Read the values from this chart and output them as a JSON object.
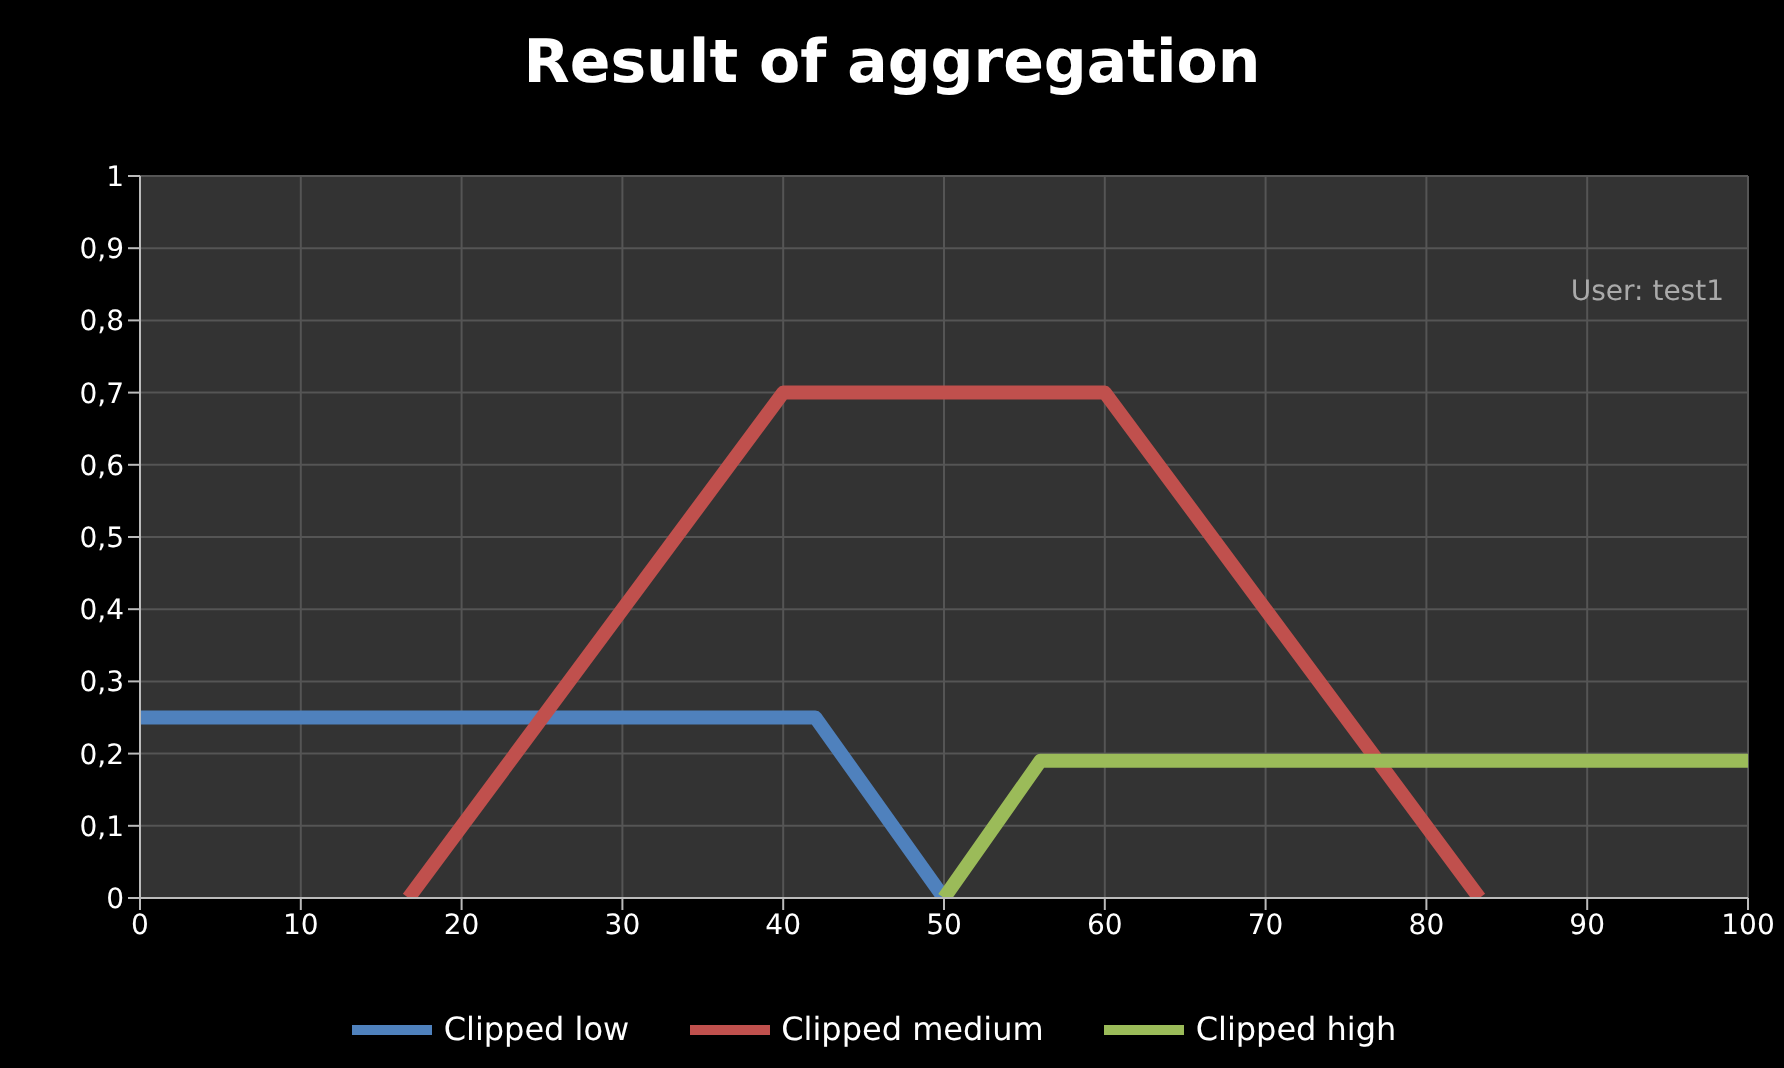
{
  "chart_data": {
    "type": "line",
    "title": "Result of aggregation",
    "series": [
      {
        "name": "Clipped low",
        "color": "#4f81bd",
        "x": [
          0,
          42,
          50
        ],
        "values": [
          0.25,
          0.25,
          0
        ]
      },
      {
        "name": "Clipped medium",
        "color": "#c0504d",
        "x": [
          16.7,
          40,
          60,
          83.3
        ],
        "values": [
          0,
          0.7,
          0.7,
          0
        ]
      },
      {
        "name": "Clipped high",
        "color": "#9bbb59",
        "x": [
          50,
          56,
          100
        ],
        "values": [
          0,
          0.19,
          0.19
        ]
      }
    ],
    "xlim": [
      0,
      100
    ],
    "xticks": [
      0,
      10,
      20,
      30,
      40,
      50,
      60,
      70,
      80,
      90,
      100
    ],
    "ylim": [
      0,
      1
    ],
    "yticks": [
      0,
      {
        "value": 0.1,
        "label": "0,1"
      },
      {
        "value": 0.2,
        "label": "0,2"
      },
      {
        "value": 0.3,
        "label": "0,3"
      },
      {
        "value": 0.4,
        "label": "0,4"
      },
      {
        "value": 0.5,
        "label": "0,5"
      },
      {
        "value": 0.6,
        "label": "0,6"
      },
      {
        "value": 0.7,
        "label": "0,7"
      },
      {
        "value": 0.8,
        "label": "0,8"
      },
      {
        "value": 0.9,
        "label": "0,9"
      },
      1
    ],
    "annotations": [
      "User: test1"
    ],
    "grid": true,
    "legend": "bottom",
    "marker": "none",
    "line_style": "solid"
  }
}
